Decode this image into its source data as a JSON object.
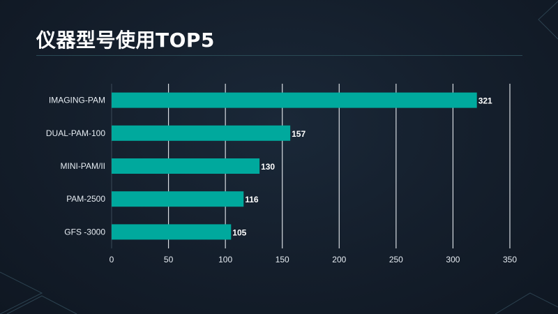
{
  "header": {
    "title": "仪器型号使用TOP5"
  },
  "colors": {
    "bar": "#00a99d",
    "grid": "#d8dde2",
    "background": "#141e2b"
  },
  "chart_data": {
    "type": "bar",
    "orientation": "horizontal",
    "title": "仪器型号使用TOP5",
    "categories": [
      "IMAGING-PAM",
      "DUAL-PAM-100",
      "MINI-PAM/II",
      "PAM-2500",
      "GFS -3000"
    ],
    "values": [
      321,
      157,
      130,
      116,
      105
    ],
    "xlim": [
      0,
      350
    ],
    "xticks": [
      0,
      50,
      100,
      150,
      200,
      250,
      300,
      350
    ],
    "grid": true,
    "data_labels": true
  }
}
